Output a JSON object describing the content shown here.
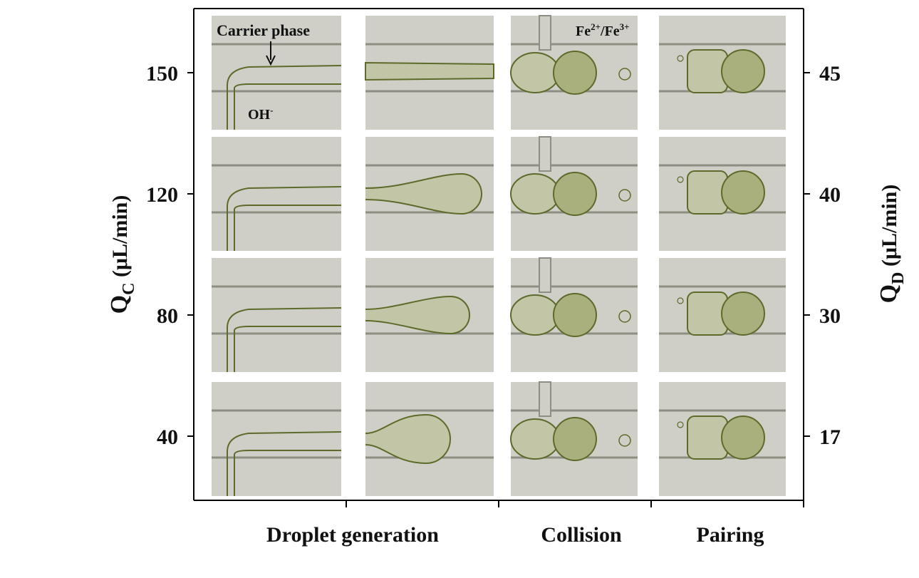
{
  "figure": {
    "left_axis": {
      "title_main": "Q",
      "title_sub": "C",
      "title_unit": " (μL/min)",
      "ticks": [
        "150",
        "120",
        "80",
        "40"
      ]
    },
    "right_axis": {
      "title_main": "Q",
      "title_sub": "D",
      "title_unit": " (μL/min)",
      "ticks": [
        "45",
        "40",
        "30",
        "17"
      ]
    },
    "column_labels": [
      "Droplet generation",
      "Collision",
      "Pairing"
    ],
    "annotations": {
      "carrier_phase": "Carrier phase",
      "hydroxide": "OH",
      "hydroxide_sup": "-",
      "iron_a": "Fe",
      "iron_a_sup": "2+",
      "iron_sep": "/Fe",
      "iron_b_sup": "3+"
    },
    "columns": [
      "T-junction inlet",
      "droplet generation",
      "collision",
      "pairing"
    ],
    "rows": 4,
    "colors": {
      "panel_bg": "#cfcfc7",
      "channel_wall": "#8e8f82",
      "interface": "#5d6a2a",
      "droplet_fill": "#c2c6a6",
      "droplet_fill_dark": "#a9b07e",
      "axis": "#000000"
    }
  }
}
